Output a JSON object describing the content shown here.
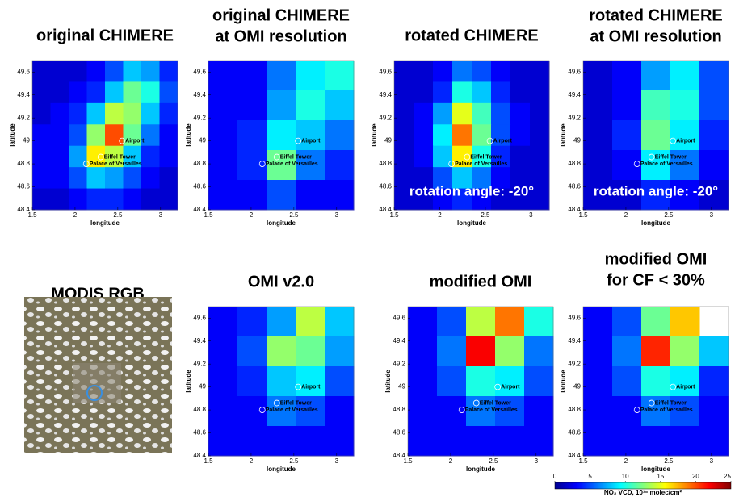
{
  "panels": [
    {
      "title": [
        "original CHIMERE"
      ],
      "xlim": [
        1.5,
        3.2
      ],
      "ylim": [
        48.4,
        49.7
      ],
      "xticks": [
        1.5,
        2,
        2.5,
        3
      ],
      "yticks": [
        48.4,
        48.6,
        48.8,
        49,
        49.2,
        49.4,
        49.6
      ],
      "xlabel": "longitude",
      "ylabel": "latitude",
      "grid": [
        [
          2,
          2,
          2,
          3,
          5,
          8,
          7,
          4
        ],
        [
          2,
          2,
          3,
          4,
          8,
          12,
          10,
          5
        ],
        [
          2,
          3,
          4,
          8,
          14,
          13,
          8,
          4
        ],
        [
          3,
          3,
          5,
          13,
          20,
          12,
          6,
          3
        ],
        [
          3,
          3,
          7,
          16,
          14,
          8,
          4,
          3
        ],
        [
          3,
          3,
          5,
          8,
          7,
          5,
          3,
          2
        ],
        [
          2,
          2,
          3,
          4,
          4,
          3,
          2,
          2
        ]
      ]
    },
    {
      "title": [
        "original CHIMERE",
        "at OMI resolution"
      ],
      "xlim": [
        1.5,
        3.2
      ],
      "ylim": [
        48.4,
        49.7
      ],
      "xticks": [
        1.5,
        2,
        2.5,
        3
      ],
      "yticks": [
        48.4,
        48.6,
        48.8,
        49,
        49.2,
        49.4,
        49.6
      ],
      "xlabel": "longitude",
      "ylabel": "latitude",
      "grid": [
        [
          3,
          3,
          6,
          9,
          10
        ],
        [
          3,
          3,
          7,
          10,
          8
        ],
        [
          3,
          4,
          9,
          8,
          6
        ],
        [
          3,
          4,
          12,
          6,
          4
        ],
        [
          3,
          3,
          5,
          3,
          3
        ]
      ]
    },
    {
      "title": [
        "rotated CHIMERE"
      ],
      "xlim": [
        1.5,
        3.2
      ],
      "ylim": [
        48.4,
        49.7
      ],
      "xticks": [
        1.5,
        2,
        2.5,
        3
      ],
      "yticks": [
        48.4,
        48.6,
        48.8,
        49,
        49.2,
        49.4,
        49.6
      ],
      "xlabel": "longitude",
      "ylabel": "latitude",
      "annotation": "rotation angle: -20°",
      "grid": [
        [
          2,
          2,
          3,
          6,
          5,
          3,
          2,
          2
        ],
        [
          2,
          2,
          4,
          10,
          8,
          4,
          2,
          2
        ],
        [
          2,
          3,
          7,
          15,
          11,
          5,
          3,
          2
        ],
        [
          2,
          3,
          9,
          19,
          12,
          5,
          3,
          2
        ],
        [
          2,
          3,
          8,
          16,
          10,
          4,
          2,
          2
        ],
        [
          2,
          2,
          5,
          8,
          6,
          3,
          2,
          2
        ],
        [
          2,
          2,
          3,
          4,
          3,
          2,
          2,
          2
        ]
      ]
    },
    {
      "title": [
        "rotated CHIMERE",
        "at OMI resolution"
      ],
      "xlim": [
        1.5,
        3.2
      ],
      "ylim": [
        48.4,
        49.7
      ],
      "xticks": [
        1.5,
        2,
        2.5,
        3
      ],
      "yticks": [
        48.4,
        48.6,
        48.8,
        49,
        49.2,
        49.4,
        49.6
      ],
      "xlabel": "longitude",
      "ylabel": "latitude",
      "annotation": "rotation angle: -20°",
      "grid": [
        [
          2,
          3,
          7,
          9,
          5
        ],
        [
          2,
          3,
          11,
          10,
          5
        ],
        [
          2,
          4,
          12,
          9,
          4
        ],
        [
          2,
          3,
          9,
          6,
          3
        ],
        [
          2,
          2,
          4,
          3,
          2
        ]
      ]
    },
    {
      "title": [
        "OMI v2.0"
      ],
      "xlim": [
        1.5,
        3.2
      ],
      "ylim": [
        48.4,
        49.7
      ],
      "xticks": [
        1.5,
        2,
        2.5,
        3
      ],
      "yticks": [
        48.4,
        48.6,
        48.8,
        49,
        49.2,
        49.4,
        49.6
      ],
      "xlabel": "longitude",
      "ylabel": "latitude",
      "grid": [
        [
          3,
          4,
          7,
          14,
          8
        ],
        [
          3,
          5,
          13,
          12,
          7
        ],
        [
          3,
          4,
          8,
          9,
          5
        ],
        [
          3,
          3,
          6,
          5,
          3
        ],
        [
          3,
          3,
          3,
          3,
          3
        ]
      ]
    },
    {
      "title": [
        "modified OMI"
      ],
      "xlim": [
        1.5,
        3.2
      ],
      "ylim": [
        48.4,
        49.7
      ],
      "xticks": [
        1.5,
        2,
        2.5,
        3
      ],
      "yticks": [
        48.4,
        48.6,
        48.8,
        49,
        49.2,
        49.4,
        49.6
      ],
      "xlabel": "longitude",
      "ylabel": "latitude",
      "grid": [
        [
          3,
          5,
          14,
          19,
          10
        ],
        [
          3,
          6,
          22,
          13,
          6
        ],
        [
          3,
          5,
          10,
          9,
          5
        ],
        [
          3,
          3,
          6,
          5,
          3
        ],
        [
          3,
          3,
          3,
          3,
          3
        ]
      ]
    },
    {
      "title": [
        "modified OMI",
        "for CF < 30%"
      ],
      "xlim": [
        1.5,
        3.2
      ],
      "ylim": [
        48.4,
        49.7
      ],
      "xticks": [
        1.5,
        2,
        2.5,
        3
      ],
      "yticks": [
        48.4,
        48.6,
        48.8,
        49,
        49.2,
        49.4,
        49.6
      ],
      "xlabel": "longitude",
      "ylabel": "latitude",
      "grid": [
        [
          3,
          5,
          12,
          17,
          null
        ],
        [
          3,
          6,
          21,
          13,
          8
        ],
        [
          3,
          5,
          10,
          9,
          4
        ],
        [
          3,
          3,
          6,
          5,
          3
        ],
        [
          3,
          3,
          3,
          3,
          3
        ]
      ]
    }
  ],
  "landmarks": [
    {
      "name": "Airport",
      "lon": 2.55,
      "lat": 49.0
    },
    {
      "name": "Eiffel Tower",
      "lon": 2.3,
      "lat": 48.86
    },
    {
      "name": "Palace of Versailles",
      "lon": 2.13,
      "lat": 48.8
    }
  ],
  "modis_title": "MODIS RGB",
  "colorbar": {
    "lim": [
      0,
      25
    ],
    "ticks": [
      0,
      5,
      10,
      15,
      20,
      25
    ],
    "label": "NO₂ VCD, 10¹⁵ molec/cm²"
  }
}
